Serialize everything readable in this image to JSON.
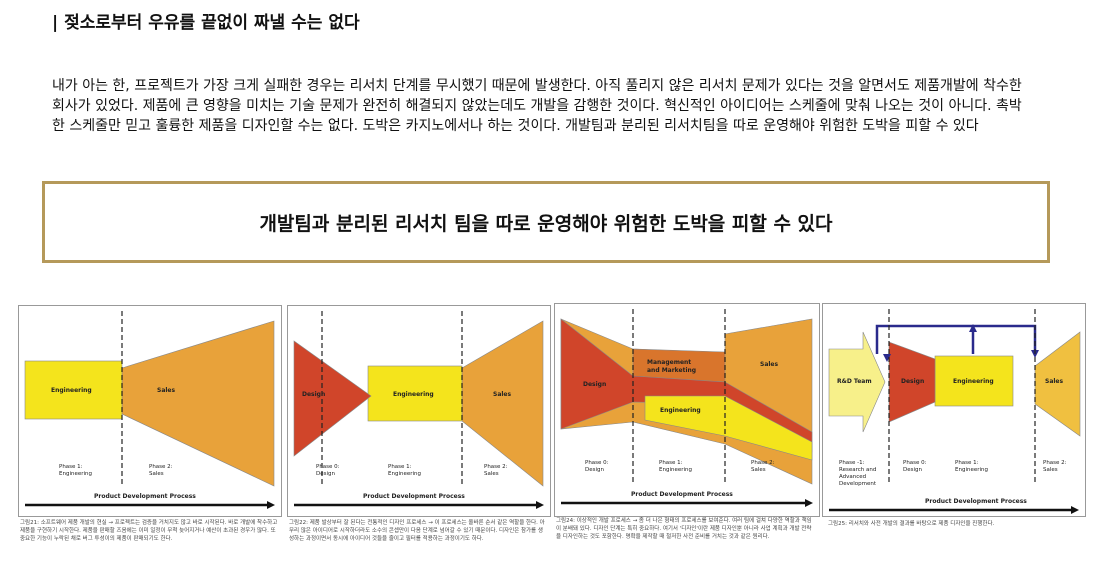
{
  "header": {
    "title": "| 젖소로부터 우유를 끝없이 짜낼 수는 없다"
  },
  "body": {
    "paragraph": "내가 아는 한, 프로젝트가 가장 크게 실패한 경우는 리서치 단계를 무시했기 때문에 발생한다. 아직 풀리지 않은 리서치 문제가 있다는 것을 알면서도 제품개발에 착수한 회사가 있었다. 제품에 큰 영향을 미치는 기술 문제가 완전히 해결되지 않았는데도 개발을 감행한 것이다. 혁신적인 아이디어는 스케줄에 맞춰 나오는 것이 아니다. 촉박한 스케줄만 믿고 훌륭한 제품을 디자인할 수는 없다. 도박은 카지노에서나 하는 것이다. 개발팀과 분리된 리서치팀을 따로 운영해야 위험한 도박을 피할 수 있다",
    "callout": "개발팀과 분리된 리서치 팀을 따로 운영해야 위험한 도박을 피할 수 있다"
  },
  "figures": [
    {
      "labels": [
        "Engineering",
        "Sales"
      ],
      "phases": [
        [
          "Phase 1:",
          "Engineering"
        ],
        [
          "Phase 2:",
          "Sales"
        ]
      ],
      "process": "Product Development Process",
      "caption": "그림21: 소프트웨어 제품 개발의 현실 → 프로젝트는 검증을 거치지도 않고 바로 시작된다. 바로 개발에 착수하고 제품을 구현하기 시작한다. 제품을 판매할 즈음에는 이미 일정이 무척 늦어지거나 예산이 초과된 경우가 많다. 또 중요한 기능이 누락된 채로 버그 투성이의 제품이 판매되기도 한다."
    },
    {
      "labels": [
        "Design",
        "Engineering",
        "Sales"
      ],
      "phases": [
        [
          "Phase 0:",
          "Design"
        ],
        [
          "Phase 1:",
          "Engineering"
        ],
        [
          "Phase 2:",
          "Sales"
        ]
      ],
      "process": "Product Development Process",
      "caption": "그림22: 제품 발상부터 잘 된다는 전통적인 디자인 프로세스 → 이 프로세스는 올바른 순서 같은 역할을 한다. 아무리 많은 아이디어로 시작하더라도 소수의 콘셉만이 다음 단계로 넘어갈 수 있기 때문이다. 디자인은 참가를 생성하는 과정이면서 동시에 아이디어 것들을 줄이고 필터를 적용하는 과정이기도 하다."
    },
    {
      "labels": [
        "Design",
        "Management",
        "and Marketing",
        "Sales",
        "Engineering"
      ],
      "phases": [
        [
          "Phase 0:",
          "Design"
        ],
        [
          "Phase 1:",
          "Engineering"
        ],
        [
          "Phase 2:",
          "Sales"
        ]
      ],
      "process": "Product Development Process",
      "caption": "그림24: 이상적인 개발 프로세스 → 좀 더 나은 형태의 프로세스를 보여준다. 여러 팀에 걸쳐 다양한 역할과 책임이 분배돼 있다. 디자인 단계는 특히 중요하다. 여기서 '디자인'이란 제품 디자인뿐 아니라 사업 계획과 개발 전략을 디자인하는 것도 포함한다. 명확을 제작할 때 철저한 사전 준비를 거치는 것과 같은 원리다."
    },
    {
      "labels": [
        "R&D Team",
        "Design",
        "Engineering",
        "Sales"
      ],
      "phases": [
        [
          "Phase -1:",
          "Research and",
          "Advanced",
          "Development"
        ],
        [
          "Phase 0:",
          "Design"
        ],
        [
          "Phase 1:",
          "Engineering"
        ],
        [
          "Phase 2:",
          "Sales"
        ]
      ],
      "process": "Product Development Process",
      "caption": "그림25: 리서치와 사전 개발의 결과를 바탕으로 제품 디자인을 진행한다."
    }
  ]
}
